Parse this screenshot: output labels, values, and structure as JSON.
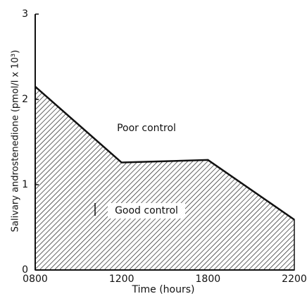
{
  "chart_data": {
    "type": "area",
    "x_label": "Time (hours)",
    "y_label": "Salivary androstenedione (pmol/l x 10³)",
    "categories": [
      "0800",
      "1200",
      "1800",
      "2200"
    ],
    "values": [
      2.15,
      1.26,
      1.29,
      0.59
    ],
    "color": "#111111",
    "ylim": [
      0,
      3
    ],
    "yticks": [
      0,
      1,
      2,
      3
    ],
    "annotations": [
      "Poor control",
      "Good control"
    ]
  }
}
